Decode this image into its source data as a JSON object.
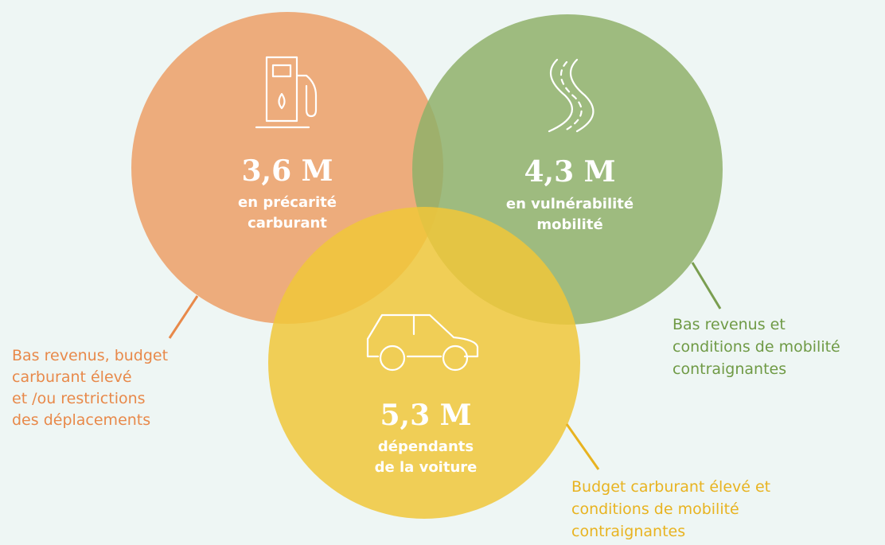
{
  "circles": [
    {
      "value": "3,6 M",
      "label": [
        "en précarité",
        "carburant"
      ],
      "description": [
        "Bas revenus, budget",
        "carburant élevé",
        "et /ou restrictions",
        "des déplacements"
      ]
    },
    {
      "value": "4,3 M",
      "label": [
        "en vulnérabilité",
        "mobilité"
      ],
      "description": [
        "Bas revenus et",
        "conditions de mobilité",
        "contraignantes"
      ]
    },
    {
      "value": "5,3 M",
      "label": [
        "dépendants",
        "de la voiture"
      ],
      "description": [
        "Budget carburant élevé et",
        "conditions de mobilité",
        "contraignantes"
      ]
    }
  ]
}
